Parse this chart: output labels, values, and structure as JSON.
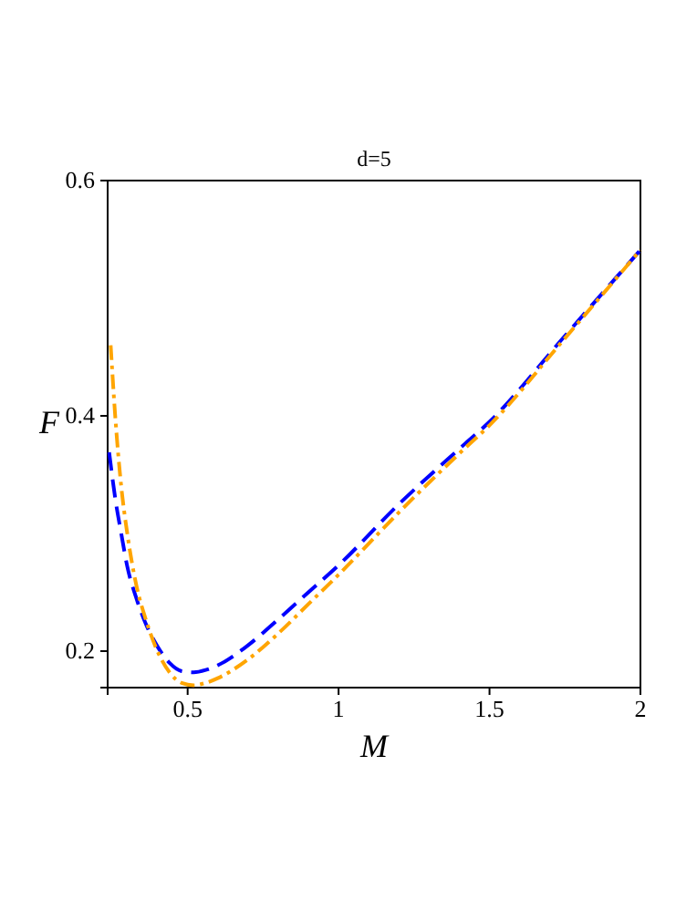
{
  "chart_data": {
    "type": "line",
    "title": "d=5",
    "xlabel": "M",
    "ylabel": "F",
    "xlim": [
      0.235,
      2
    ],
    "ylim": [
      0.169,
      0.6
    ],
    "xticks": [
      0.5,
      1,
      1.5,
      2
    ],
    "yticks": [
      0.2,
      0.4,
      0.6
    ],
    "grid": false,
    "series": [
      {
        "color": "#0000ff",
        "line_style": "dashed",
        "x": [
          0.24,
          0.26,
          0.28,
          0.3,
          0.33,
          0.36,
          0.4,
          0.44,
          0.48,
          0.52,
          0.56,
          0.6,
          0.7,
          0.8,
          0.9,
          1.0,
          1.2,
          1.4,
          1.5,
          1.75,
          2.0
        ],
        "values": [
          0.369,
          0.33,
          0.3,
          0.272,
          0.245,
          0.224,
          0.204,
          0.19,
          0.183,
          0.182,
          0.184,
          0.188,
          0.205,
          0.227,
          0.25,
          0.273,
          0.325,
          0.372,
          0.395,
          0.468,
          0.541
        ]
      },
      {
        "color": "#ffa500",
        "line_style": "dashdot",
        "x": [
          0.245,
          0.26,
          0.28,
          0.3,
          0.33,
          0.36,
          0.4,
          0.44,
          0.48,
          0.52,
          0.56,
          0.6,
          0.7,
          0.8,
          0.9,
          1.0,
          1.2,
          1.4,
          1.5,
          1.75,
          2.0
        ],
        "values": [
          0.46,
          0.4,
          0.34,
          0.3,
          0.256,
          0.228,
          0.2,
          0.182,
          0.173,
          0.171,
          0.173,
          0.177,
          0.193,
          0.215,
          0.24,
          0.265,
          0.318,
          0.368,
          0.392,
          0.466,
          0.541
        ]
      }
    ]
  }
}
